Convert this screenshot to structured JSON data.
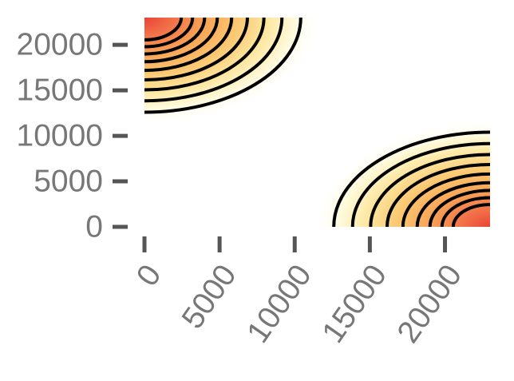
{
  "chart_data": {
    "type": "contour",
    "title": "",
    "xlabel": "",
    "ylabel": "",
    "xlim": [
      0,
      23000
    ],
    "ylim": [
      0,
      23000
    ],
    "x_ticks": [
      0,
      5000,
      10000,
      15000,
      20000
    ],
    "y_ticks": [
      0,
      5000,
      10000,
      15000,
      20000
    ],
    "x_tick_labels": [
      "0",
      "5000",
      "10000",
      "15000",
      "20000"
    ],
    "y_tick_labels": [
      "0",
      "5000",
      "10000",
      "15000",
      "20000"
    ],
    "grid": false,
    "legend": "none",
    "colormap": [
      "#fffbe0",
      "#fde7a2",
      "#fbc770",
      "#f8a356",
      "#f27148",
      "#ea4236"
    ],
    "line_color": "#000000",
    "regions": [
      {
        "corner": "top-left",
        "center": [
          0,
          23000
        ],
        "contour_radii": [
          10400,
          9150,
          7950,
          6850,
          5800,
          4850,
          4000,
          3200,
          2450
        ]
      },
      {
        "corner": "bottom-right",
        "center": [
          23000,
          0
        ],
        "contour_radii": [
          10400,
          9150,
          7950,
          6850,
          5800,
          4850,
          4000,
          3200,
          2450
        ]
      }
    ]
  }
}
